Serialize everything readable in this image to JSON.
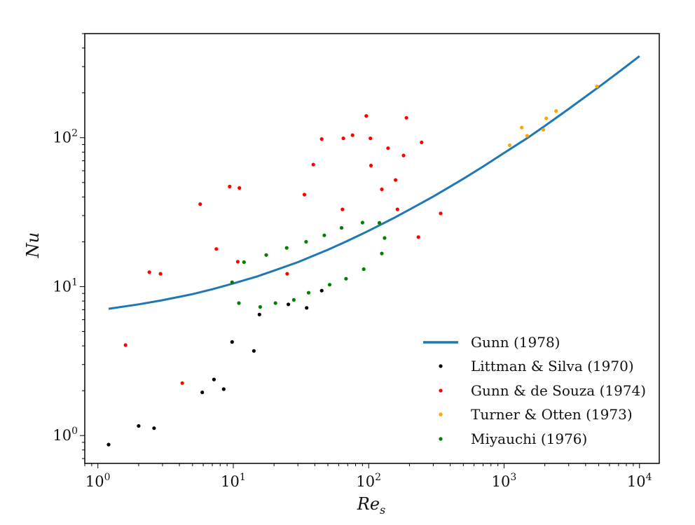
{
  "chart_data": {
    "type": "scatter",
    "xscale": "log",
    "yscale": "log",
    "xlim": [
      0.8,
      14000
    ],
    "ylim": [
      0.65,
      500
    ],
    "x_ticks": [
      1,
      10,
      100,
      1000,
      10000
    ],
    "y_ticks": [
      1,
      10,
      100
    ],
    "x_tick_labels": [
      {
        "base": "10",
        "exp": "0"
      },
      {
        "base": "10",
        "exp": "1"
      },
      {
        "base": "10",
        "exp": "2"
      },
      {
        "base": "10",
        "exp": "3"
      },
      {
        "base": "10",
        "exp": "4"
      }
    ],
    "y_tick_labels": [
      {
        "base": "10",
        "exp": "0"
      },
      {
        "base": "10",
        "exp": "1"
      },
      {
        "base": "10",
        "exp": "2"
      }
    ],
    "xlabel": {
      "main": "Re",
      "sub": "s"
    },
    "ylabel": "Nu",
    "grid": false,
    "legend_position": "lower-right",
    "line": {
      "name": "Gunn (1978)",
      "color": "#1f77b4",
      "x": [
        1.2,
        2,
        3,
        5,
        7,
        10,
        15,
        20,
        30,
        50,
        70,
        100,
        150,
        200,
        300,
        500,
        700,
        1000,
        1500,
        2000,
        3000,
        5000,
        7000,
        10000
      ],
      "y": [
        7.1,
        7.6,
        8.1,
        8.9,
        9.6,
        10.5,
        11.7,
        12.8,
        14.6,
        17.7,
        20.3,
        23.7,
        28.6,
        32.9,
        40.3,
        53.0,
        64.0,
        79.0,
        100,
        120,
        156,
        219,
        275,
        353
      ]
    },
    "series": [
      {
        "name": "Littman & Silva (1970)",
        "color": "#000000",
        "x": [
          1.2,
          2.0,
          2.6,
          5.9,
          7.2,
          8.5,
          9.8,
          14.2,
          15.6,
          25.5,
          34.8,
          45.0
        ],
        "y": [
          0.87,
          1.16,
          1.12,
          1.95,
          2.38,
          2.05,
          4.25,
          3.7,
          6.5,
          7.6,
          7.2,
          9.4
        ]
      },
      {
        "name": "Gunn & de Souza (1974)",
        "color": "#ff0000",
        "x": [
          1.6,
          2.4,
          2.9,
          4.2,
          5.7,
          7.5,
          9.4,
          10.8,
          11.1,
          25.0,
          33.5,
          39.0,
          45.0,
          64.0,
          65.0,
          76.0,
          96.0,
          103.0,
          104.0,
          125.0,
          139.0,
          158.0,
          163.0,
          181.0,
          190.0,
          233.0,
          246.0,
          340.0
        ],
        "y": [
          4.05,
          12.5,
          12.2,
          2.25,
          35.8,
          17.9,
          47.0,
          14.7,
          46.0,
          12.2,
          41.5,
          66.0,
          98.0,
          33.0,
          99.0,
          104.0,
          140.0,
          99.0,
          65.0,
          45.0,
          85.0,
          52.0,
          33.0,
          76.0,
          136.0,
          21.5,
          93.0,
          31.0
        ]
      },
      {
        "name": "Turner & Otten (1973)",
        "color": "#ffa500",
        "x": [
          1100,
          1350,
          1480,
          1950,
          2050,
          2420,
          4850
        ],
        "y": [
          89,
          117,
          103,
          113,
          135,
          151,
          221
        ]
      },
      {
        "name": "Miyauchi (1976)",
        "color": "#008000",
        "x": [
          9.8,
          11.0,
          12.0,
          15.8,
          17.5,
          20.5,
          24.8,
          28.0,
          34.5,
          36.0,
          47.0,
          51.5,
          63.0,
          68.0,
          90.0,
          92.0,
          120.0,
          125.0,
          131.0
        ],
        "y": [
          10.7,
          7.75,
          14.6,
          7.3,
          16.3,
          7.75,
          18.2,
          8.15,
          20.0,
          9.1,
          22.1,
          10.3,
          24.8,
          11.3,
          26.9,
          13.1,
          26.8,
          16.7,
          21.2
        ]
      }
    ]
  }
}
